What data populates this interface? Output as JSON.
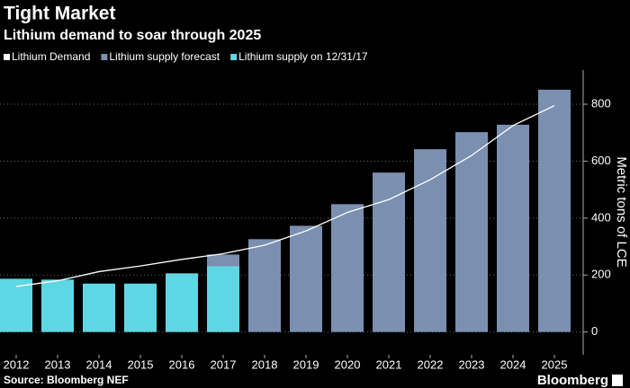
{
  "chart_data": {
    "type": "bar",
    "title": "Tight Market",
    "subtitle": "Lithium demand to soar through 2025",
    "y_label": "Metric tons of LCE",
    "source": "Source: Bloomberg NEF",
    "brand": "Bloomberg",
    "categories": [
      "2012",
      "2013",
      "2014",
      "2015",
      "2016",
      "2017",
      "2018",
      "2019",
      "2020",
      "2021",
      "2022",
      "2023",
      "2024",
      "2025"
    ],
    "series": [
      {
        "name": "Lithium Demand",
        "type": "line",
        "color": "#ffffff",
        "values": [
          160,
          180,
          212,
          232,
          255,
          275,
          305,
          355,
          420,
          465,
          535,
          620,
          725,
          795
        ]
      },
      {
        "name": "Lithium supply forecast",
        "type": "bar",
        "color": "#7b8fb0",
        "values": [
          null,
          null,
          null,
          null,
          null,
          272,
          326,
          373,
          449,
          560,
          642,
          702,
          728,
          851
        ]
      },
      {
        "name": "Lithium supply on 12/31/17",
        "type": "bar",
        "color": "#5fd6e3",
        "values": [
          187,
          184,
          170,
          170,
          206,
          231,
          null,
          null,
          null,
          null,
          null,
          null,
          null,
          null
        ]
      }
    ],
    "ylim": [
      -80,
      920
    ],
    "yticks": [
      0,
      200,
      400,
      600,
      800
    ],
    "y_axis_side": "right",
    "grid": true
  }
}
